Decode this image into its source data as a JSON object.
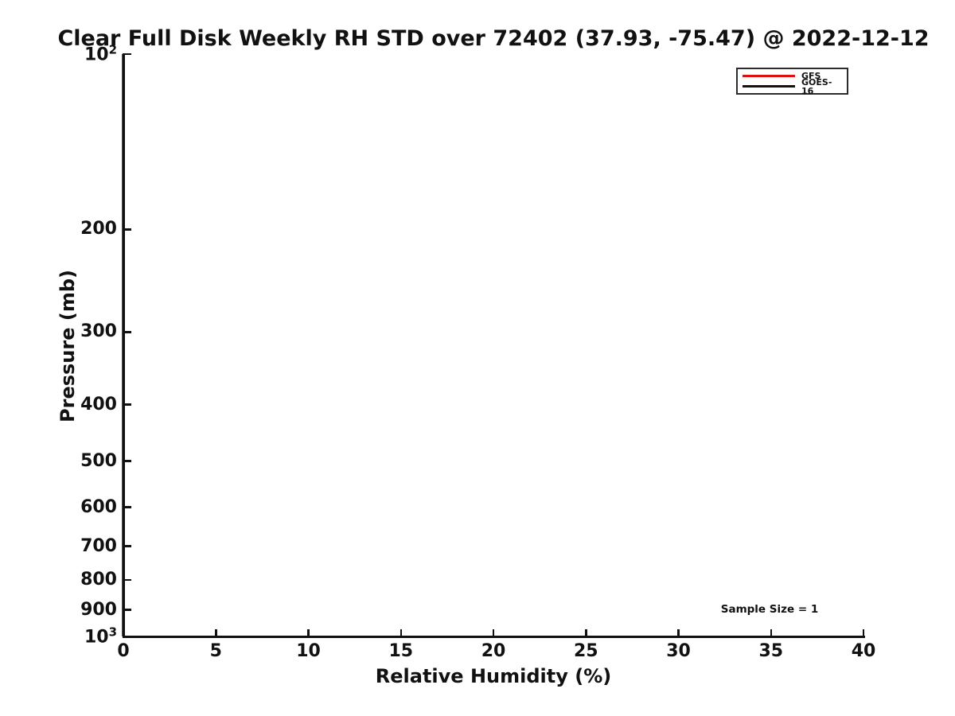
{
  "chart_data": {
    "type": "line",
    "title": "Clear Full Disk Weekly RH STD over 72402 (37.93, -75.47) @ 2022-12-12",
    "xlabel": "Relative Humidity (%)",
    "ylabel": "Pressure (mb)",
    "x_axis": {
      "scale": "linear",
      "min": 0,
      "max": 40,
      "ticks": [
        {
          "value": 0,
          "label": "0"
        },
        {
          "value": 5,
          "label": "5"
        },
        {
          "value": 10,
          "label": "10"
        },
        {
          "value": 15,
          "label": "15"
        },
        {
          "value": 20,
          "label": "20"
        },
        {
          "value": 25,
          "label": "25"
        },
        {
          "value": 30,
          "label": "30"
        },
        {
          "value": 35,
          "label": "35"
        },
        {
          "value": 40,
          "label": "40"
        }
      ]
    },
    "y_axis": {
      "scale": "log",
      "min": 100,
      "max": 1000,
      "inverted": true,
      "ticks": [
        {
          "value": 100,
          "label": "10^2"
        },
        {
          "value": 200,
          "label": "200"
        },
        {
          "value": 300,
          "label": "300"
        },
        {
          "value": 400,
          "label": "400"
        },
        {
          "value": 500,
          "label": "500"
        },
        {
          "value": 600,
          "label": "600"
        },
        {
          "value": 700,
          "label": "700"
        },
        {
          "value": 800,
          "label": "800"
        },
        {
          "value": 900,
          "label": "900"
        },
        {
          "value": 1000,
          "label": "10^3"
        }
      ]
    },
    "series": [
      {
        "name": "GFS",
        "color": "#dd1111",
        "visible_points": []
      },
      {
        "name": "GOES-16",
        "color": "#111111",
        "visible_points": []
      }
    ],
    "legend": {
      "position": "top-right"
    },
    "grid": false,
    "annotations": [
      {
        "text": "Sample Size = 1"
      }
    ]
  }
}
